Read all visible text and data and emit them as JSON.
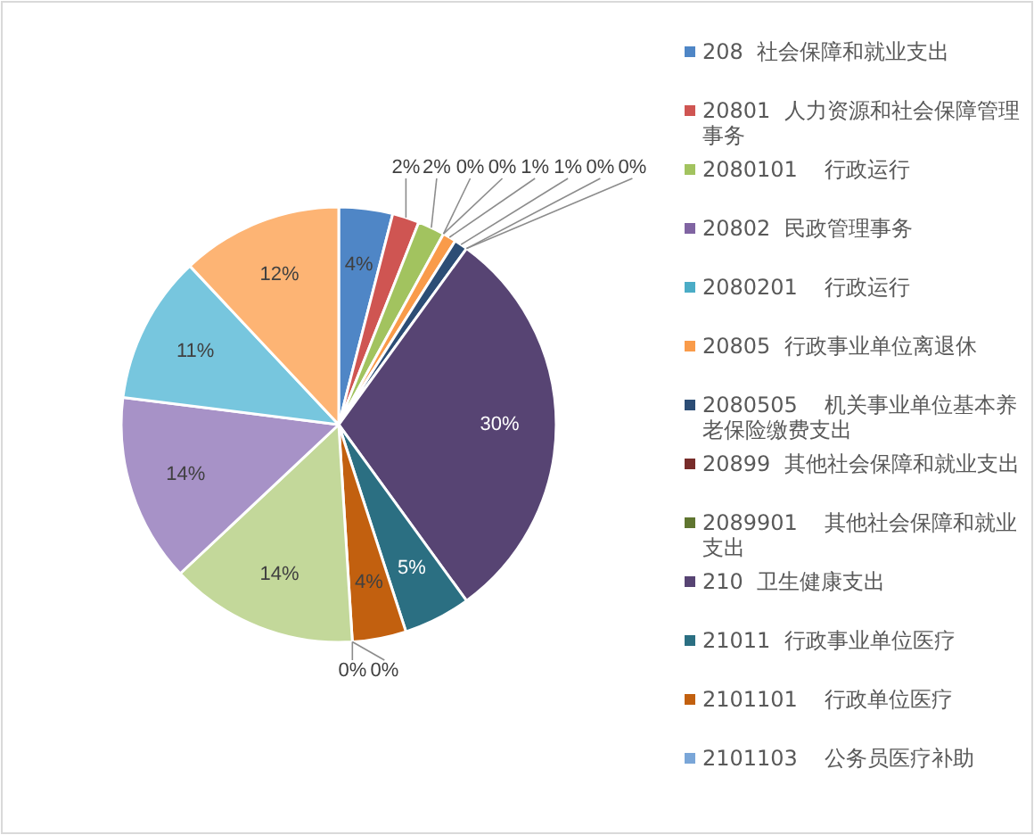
{
  "chart_data": {
    "type": "pie",
    "categories": [
      "208  社会保障和就业支出",
      "20801  人力资源和社会保障管理事务",
      "2080101    行政运行",
      "20802  民政管理事务",
      "2080201    行政运行",
      "20805  行政事业单位离退休",
      "2080505    机关事业单位基本养老保险缴费支出",
      "20899  其他社会保障和就业支出",
      "2089901    其他社会保障和就业支出",
      "210  卫生健康支出",
      "21011  行政事业单位医疗",
      "2101101    行政单位医疗",
      "2101103    公务员医疗补助",
      null,
      null,
      null,
      null,
      null
    ],
    "values": [
      4,
      2,
      2,
      0,
      0,
      1,
      1,
      0,
      0,
      30,
      5,
      4,
      0,
      0,
      14,
      14,
      11,
      12
    ],
    "value_labels": [
      "4%",
      "2%",
      "2%",
      "0%",
      "0%",
      "1%",
      "1%",
      "0%",
      "0%",
      "30%",
      "5%",
      "4%",
      "0%",
      "0%",
      "14%",
      "14%",
      "11%",
      "12%"
    ],
    "colors": [
      "#4f86c6",
      "#cf5552",
      "#a2c35f",
      "#8064a2",
      "#4bacc6",
      "#f99b4a",
      "#2c4d75",
      "#772c2a",
      "#5f7530",
      "#574473",
      "#2b6f82",
      "#c2600f",
      "#7aa6d8",
      "#d98080",
      "#c3d89a",
      "#a792c7",
      "#77c6de",
      "#fdb474"
    ],
    "legend": "right"
  }
}
